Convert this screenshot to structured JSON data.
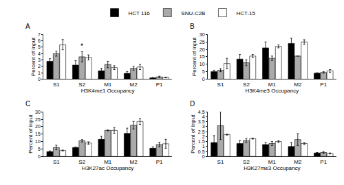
{
  "chart_data": [
    {
      "type": "bar",
      "title": "A",
      "x_label": "H3K4me1 Occupancy",
      "y_label": "Percent of Input",
      "categories": [
        "S1",
        "S2",
        "M1",
        "M2",
        "P1"
      ],
      "legend": "top",
      "series": [
        {
          "name": "HCT 116",
          "color": "#000000",
          "values": [
            2.8,
            2.2,
            1.3,
            0.9,
            0.2
          ],
          "errors": [
            0.4,
            0.7,
            0.4,
            0.3,
            0.05
          ]
        },
        {
          "name": "SNU-C2B",
          "color": "#aaaaaa",
          "values": [
            4.0,
            3.5,
            2.3,
            1.7,
            0.35
          ],
          "errors": [
            0.4,
            0.8,
            0.5,
            0.3,
            0.1
          ]
        },
        {
          "name": "HCT-15",
          "color": "#ffffff",
          "values": [
            5.4,
            3.4,
            1.8,
            1.9,
            0.25
          ],
          "errors": [
            0.8,
            0.4,
            0.3,
            0.4,
            0.05
          ]
        }
      ],
      "annotations": [
        {
          "text": "*",
          "category": "S2"
        }
      ],
      "ylim": [
        0,
        7
      ],
      "yticks": [
        0,
        1,
        2,
        3,
        4,
        5,
        6,
        7
      ],
      "grid": false
    },
    {
      "type": "bar",
      "title": "B",
      "x_label": "H3K4me3 Occupancy",
      "y_label": "Percent of Input",
      "categories": [
        "S1",
        "S2",
        "M1",
        "M2",
        "P1"
      ],
      "series": [
        {
          "name": "HCT 116",
          "color": "#000000",
          "values": [
            5,
            13.5,
            21,
            24,
            4
          ],
          "errors": [
            1,
            3,
            4,
            3.5,
            0.3
          ]
        },
        {
          "name": "SNU-C2B",
          "color": "#aaaaaa",
          "values": [
            6,
            11,
            14,
            15.5,
            4.5
          ],
          "errors": [
            1,
            2,
            1.5,
            0,
            0.5
          ]
        },
        {
          "name": "HCT-15",
          "color": "#ffffff",
          "values": [
            10.5,
            15.5,
            22,
            25,
            5.5
          ],
          "errors": [
            3.5,
            1,
            1,
            1.5,
            1
          ]
        }
      ],
      "ylim": [
        0,
        30
      ],
      "yticks": [
        0,
        5,
        10,
        15,
        20,
        25,
        30
      ],
      "grid": false
    },
    {
      "type": "bar",
      "title": "C",
      "x_label": "H3K27ac Occupancy",
      "y_label": "Percent of Input",
      "categories": [
        "S1",
        "S2",
        "M1",
        "M2",
        "P1"
      ],
      "series": [
        {
          "name": "HCT 116",
          "color": "#000000",
          "values": [
            3.2,
            6,
            11.5,
            15.5,
            5.5
          ],
          "errors": [
            0.5,
            0.3,
            2,
            3.5,
            1
          ]
        },
        {
          "name": "SNU-C2B",
          "color": "#aaaaaa",
          "values": [
            6,
            10.5,
            17.5,
            21,
            8
          ],
          "errors": [
            1.5,
            0.8,
            0.3,
            2.5,
            1.5
          ]
        },
        {
          "name": "HCT-15",
          "color": "#ffffff",
          "values": [
            4,
            9,
            17.5,
            23.5,
            8.5
          ],
          "errors": [
            0.3,
            0.8,
            2,
            2,
            3
          ]
        }
      ],
      "ylim": [
        0,
        30
      ],
      "yticks": [
        0,
        5,
        10,
        15,
        20,
        25,
        30
      ],
      "grid": false
    },
    {
      "type": "bar",
      "title": "D",
      "x_label": "H3K27me3 Occupancy",
      "y_label": "Percent of Input",
      "categories": [
        "S1",
        "S2",
        "M1",
        "M2",
        "P1"
      ],
      "series": [
        {
          "name": "HCT 116",
          "color": "#000000",
          "values": [
            1.4,
            1.3,
            1.2,
            1.0,
            0.35
          ],
          "errors": [
            0.7,
            0.3,
            0.2,
            0.4,
            0.05
          ]
        },
        {
          "name": "SNU-C2B",
          "color": "#aaaaaa",
          "values": [
            3.1,
            1.6,
            1.3,
            1.7,
            0.4
          ],
          "errors": [
            1.4,
            0.2,
            0.2,
            0.6,
            0.1
          ]
        },
        {
          "name": "HCT-15",
          "color": "#ffffff",
          "values": [
            2.2,
            1.8,
            1.5,
            1.3,
            0.3
          ],
          "errors": [
            0.05,
            0.05,
            0.1,
            0.1,
            0.05
          ]
        }
      ],
      "ylim": [
        0,
        4.5
      ],
      "yticks": [
        0,
        0.5,
        1,
        1.5,
        2,
        2.5,
        3,
        3.5,
        4,
        4.5
      ],
      "grid": false
    }
  ]
}
